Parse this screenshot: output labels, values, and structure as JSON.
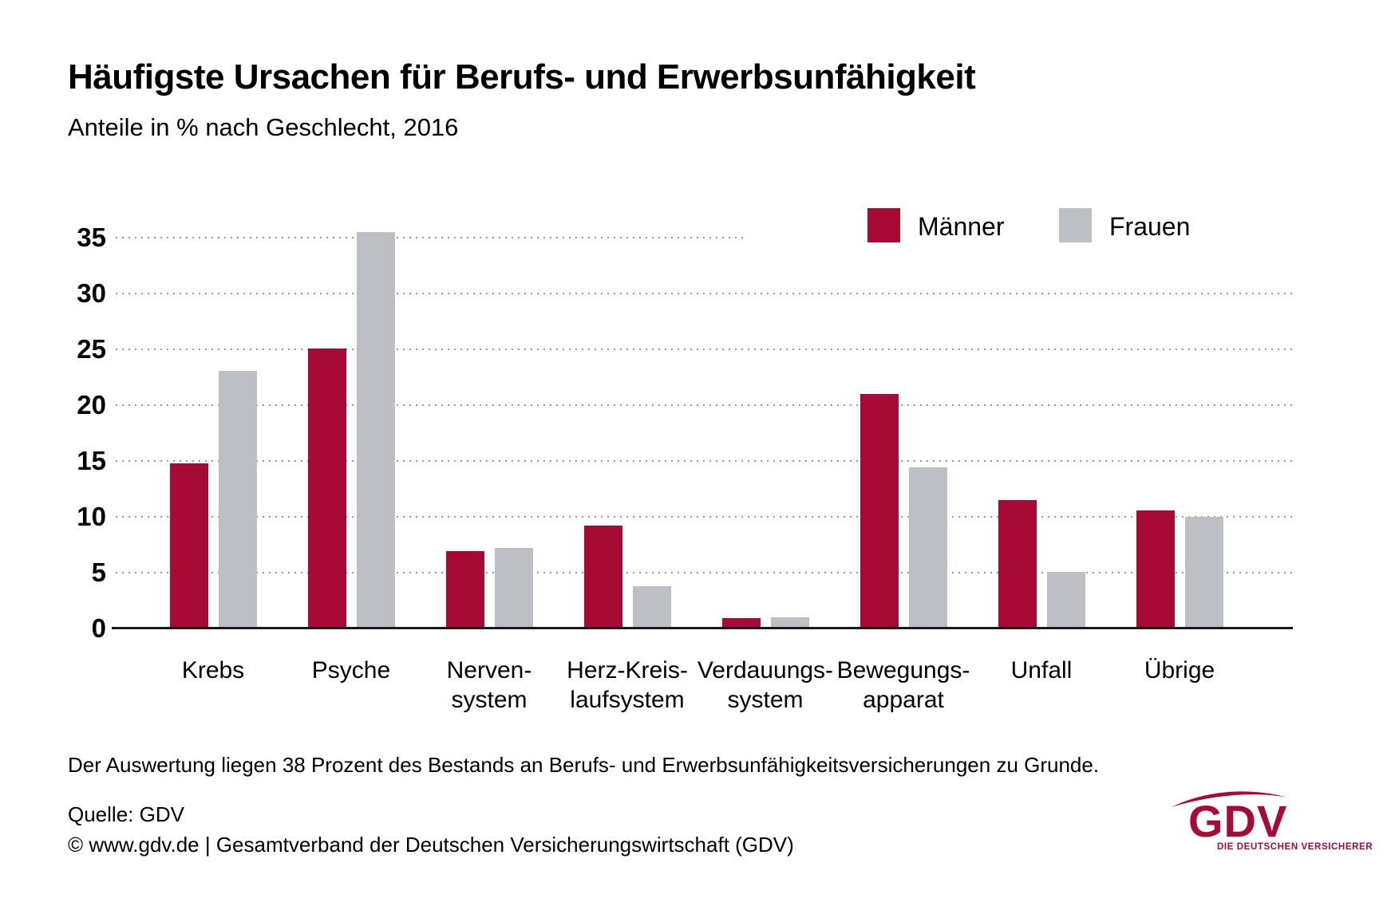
{
  "title": "Häufigste Ursachen für Berufs- und Erwerbsunfähigkeit",
  "subtitle": "Anteile in % nach Geschlecht, 2016",
  "legend": {
    "items": [
      {
        "label": "Männer",
        "color": "#A60A35"
      },
      {
        "label": "Frauen",
        "color": "#BCC0C4"
      }
    ]
  },
  "chart_data": {
    "type": "bar",
    "title": "Häufigste Ursachen für Berufs- und Erwerbsunfähigkeit",
    "subtitle": "Anteile in % nach Geschlecht, 2016",
    "categories": [
      "Krebs",
      "Psyche",
      "Nerven-\nsystem",
      "Herz-Kreis-\nlaufsystem",
      "Verdauungs-\nsystem",
      "Bewegungs-\napparat",
      "Unfall",
      "Übrige"
    ],
    "series": [
      {
        "name": "Männer",
        "color": "#A60A35",
        "values": [
          14.8,
          25.1,
          6.9,
          9.2,
          0.9,
          21.0,
          11.5,
          10.6
        ]
      },
      {
        "name": "Frauen",
        "color": "#BCC0C4",
        "values": [
          23.1,
          35.5,
          7.2,
          3.8,
          1.0,
          14.4,
          5.1,
          10.0
        ]
      }
    ],
    "xlabel": "",
    "ylabel": "Anteile in %",
    "ylim": [
      0,
      35
    ],
    "yticks": [
      0,
      5,
      10,
      15,
      20,
      25,
      30,
      35
    ],
    "grid": "dotted-horizontal",
    "legend_position": "top-right"
  },
  "footnote": "Der Auswertung liegen 38 Prozent des Bestands an Berufs- und Erwerbsunfähigkeitsversicherungen zu Grunde.",
  "source": "Quelle: GDV",
  "copyright": "© www.gdv.de | Gesamtverband der Deutschen Versicherungswirtschaft (GDV)",
  "logo": {
    "text": "GDV",
    "tagline": "DIE DEUTSCHEN VERSICHERER",
    "color": "#A60A35"
  }
}
